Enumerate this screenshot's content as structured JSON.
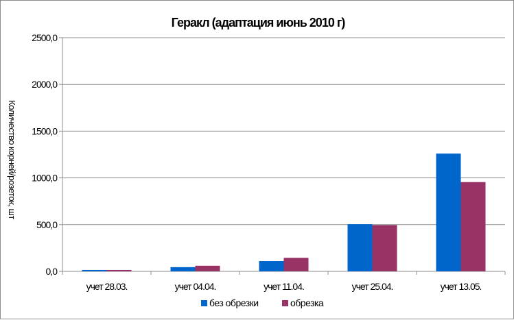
{
  "chart_data": {
    "type": "bar",
    "title": "Геракл (адаптация июнь 2010 г)",
    "ylabel": "Количество корней/розеток, шт",
    "xlabel": "",
    "categories": [
      "учет 28.03.",
      "учет 04.04.",
      "учет 11.04.",
      "учет 25.04.",
      "учет 13.05."
    ],
    "series": [
      {
        "name": "без обрезки",
        "color": "#0066CC",
        "values": [
          15,
          45,
          110,
          505,
          1260
        ]
      },
      {
        "name": "обрезка",
        "color": "#993366",
        "values": [
          15,
          60,
          145,
          495,
          955
        ]
      }
    ],
    "ylim": [
      0,
      2500
    ],
    "yticks": [
      "0,0",
      "500,0",
      "1000,0",
      "1500,0",
      "2000,0",
      "2500,0"
    ],
    "grid": true,
    "legend_position": "bottom"
  }
}
